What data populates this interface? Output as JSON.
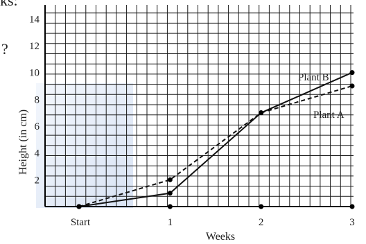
{
  "header_fragment": "ks:",
  "side_fragment": "?",
  "chart_data": {
    "type": "line",
    "x": [
      0,
      1,
      2,
      3
    ],
    "categories": [
      "Start",
      "1",
      "2",
      "3"
    ],
    "xlabel": "Weeks",
    "ylabel": "Height (in cm)",
    "ylim": [
      0,
      15
    ],
    "yticks": [
      "2",
      "4",
      "6",
      "8",
      "10",
      "12",
      "14"
    ],
    "grid": true,
    "series": [
      {
        "name": "Plant A",
        "values": [
          0,
          2,
          7,
          9
        ],
        "style": "dashed",
        "color": "#111111"
      },
      {
        "name": "Plant B",
        "values": [
          0,
          1,
          7,
          10
        ],
        "style": "solid",
        "color": "#111111"
      }
    ]
  }
}
